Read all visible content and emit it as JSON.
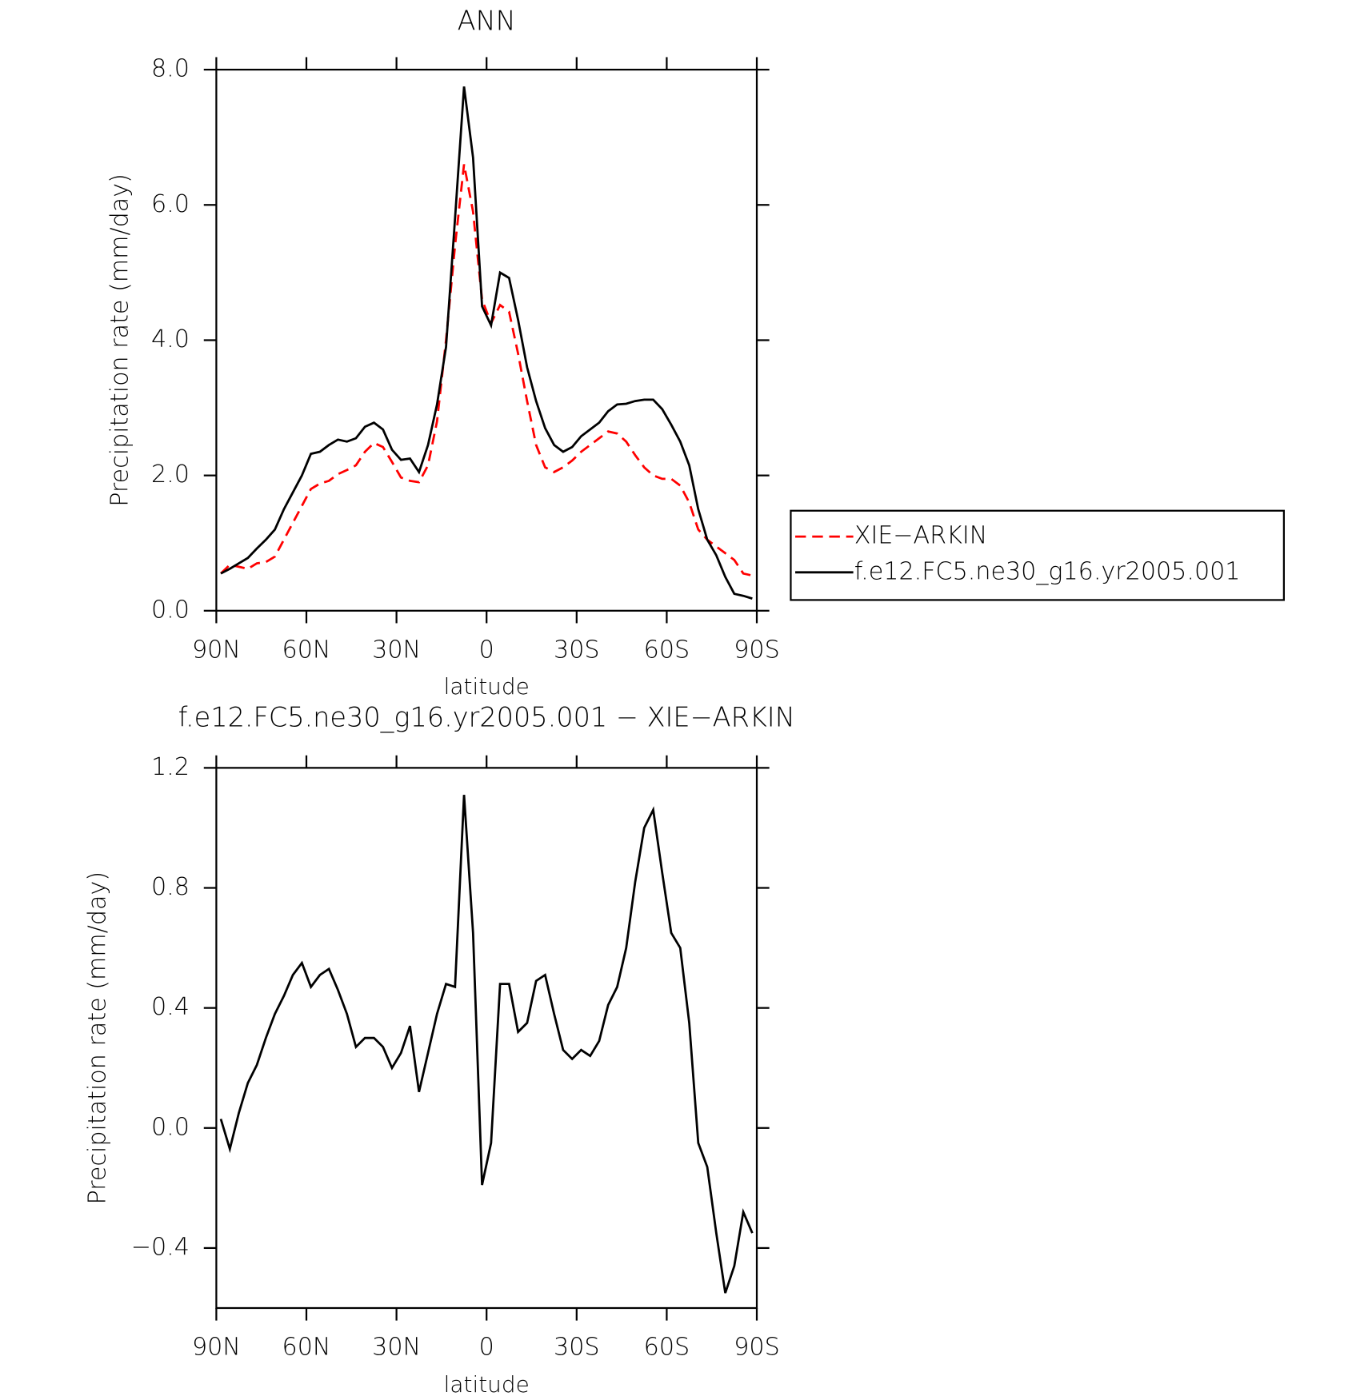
{
  "chart_data": [
    {
      "type": "line",
      "title": "ANN",
      "xlabel": "latitude",
      "ylabel": "Precipitation rate (mm/day)",
      "x": [
        88.5,
        85.5,
        82.5,
        79.5,
        76.5,
        73.5,
        70.5,
        67.5,
        64.5,
        61.5,
        58.5,
        55.5,
        52.5,
        49.5,
        46.5,
        43.5,
        40.5,
        37.5,
        34.5,
        31.5,
        28.5,
        25.5,
        22.5,
        19.5,
        16.5,
        13.5,
        10.5,
        7.5,
        4.5,
        1.5,
        -1.5,
        -4.5,
        -7.5,
        -10.5,
        -13.5,
        -16.5,
        -19.5,
        -22.5,
        -25.5,
        -28.5,
        -31.5,
        -34.5,
        -37.5,
        -40.5,
        -43.5,
        -46.5,
        -49.5,
        -52.5,
        -55.5,
        -58.5,
        -61.5,
        -64.5,
        -67.5,
        -70.5,
        -73.5,
        -76.5,
        -79.5,
        -82.5,
        -85.5,
        -88.5
      ],
      "series": [
        {
          "name": "XIE−ARKIN",
          "color": "#ff0000",
          "dashed": true,
          "values": [
            0.55,
            0.68,
            0.65,
            0.62,
            0.7,
            0.72,
            0.8,
            1.05,
            1.3,
            1.55,
            1.8,
            1.88,
            1.92,
            2.02,
            2.08,
            2.15,
            2.35,
            2.48,
            2.42,
            2.2,
            1.97,
            1.92,
            1.9,
            2.15,
            2.8,
            4.0,
            5.4,
            6.6,
            5.9,
            4.6,
            4.25,
            4.52,
            4.42,
            3.8,
            3.1,
            2.45,
            2.12,
            2.05,
            2.12,
            2.22,
            2.35,
            2.45,
            2.55,
            2.65,
            2.62,
            2.5,
            2.3,
            2.12,
            2.0,
            1.95,
            1.95,
            1.85,
            1.6,
            1.2,
            1.05,
            0.95,
            0.85,
            0.75,
            0.55,
            0.52
          ]
        },
        {
          "name": "f.e12.FC5.ne30_g16.yr2005.001",
          "color": "#000000",
          "dashed": false,
          "values": [
            0.55,
            0.62,
            0.7,
            0.78,
            0.92,
            1.05,
            1.2,
            1.5,
            1.75,
            2.0,
            2.32,
            2.35,
            2.45,
            2.53,
            2.5,
            2.55,
            2.72,
            2.78,
            2.68,
            2.38,
            2.23,
            2.25,
            2.05,
            2.45,
            3.05,
            3.9,
            5.8,
            7.75,
            6.7,
            4.5,
            4.22,
            5.0,
            4.92,
            4.3,
            3.6,
            3.1,
            2.7,
            2.45,
            2.35,
            2.42,
            2.58,
            2.68,
            2.78,
            2.95,
            3.05,
            3.06,
            3.1,
            3.12,
            3.12,
            2.98,
            2.75,
            2.5,
            2.15,
            1.5,
            1.05,
            0.82,
            0.5,
            0.25,
            0.22,
            0.18
          ]
        }
      ],
      "xlim": [
        90,
        -90
      ],
      "xticks": [
        {
          "value": 90,
          "label": "90N"
        },
        {
          "value": 60,
          "label": "60N"
        },
        {
          "value": 30,
          "label": "30N"
        },
        0,
        {
          "value": -30,
          "label": "30S"
        },
        {
          "value": -60,
          "label": "60S"
        },
        {
          "value": -90,
          "label": "90S"
        }
      ],
      "ylim": [
        0,
        8
      ],
      "yticks": [
        {
          "value": 0,
          "label": "0.0"
        },
        {
          "value": 2,
          "label": "2.0"
        },
        {
          "value": 4,
          "label": "4.0"
        },
        {
          "value": 6,
          "label": "6.0"
        },
        {
          "value": 8,
          "label": "8.0"
        }
      ],
      "legend": "outside-right"
    },
    {
      "type": "line",
      "title": "f.e12.FC5.ne30_g16.yr2005.001 − XIE−ARKIN",
      "xlabel": "latitude",
      "ylabel": "Precipitation rate (mm/day)",
      "x": [
        88.5,
        85.5,
        82.5,
        79.5,
        76.5,
        73.5,
        70.5,
        67.5,
        64.5,
        61.5,
        58.5,
        55.5,
        52.5,
        49.5,
        46.5,
        43.5,
        40.5,
        37.5,
        34.5,
        31.5,
        28.5,
        25.5,
        22.5,
        19.5,
        16.5,
        13.5,
        10.5,
        7.5,
        4.5,
        1.5,
        -1.5,
        -4.5,
        -7.5,
        -10.5,
        -13.5,
        -16.5,
        -19.5,
        -22.5,
        -25.5,
        -28.5,
        -31.5,
        -34.5,
        -37.5,
        -40.5,
        -43.5,
        -46.5,
        -49.5,
        -52.5,
        -55.5,
        -58.5,
        -61.5,
        -64.5,
        -67.5,
        -70.5,
        -73.5,
        -76.5,
        -79.5,
        -82.5,
        -85.5,
        -88.5
      ],
      "color": "#000000",
      "values": [
        0.03,
        -0.07,
        0.05,
        0.15,
        0.21,
        0.3,
        0.38,
        0.44,
        0.51,
        0.55,
        0.47,
        0.51,
        0.53,
        0.46,
        0.38,
        0.27,
        0.3,
        0.3,
        0.27,
        0.2,
        0.25,
        0.34,
        0.12,
        0.25,
        0.38,
        0.48,
        0.47,
        1.11,
        0.65,
        -0.19,
        -0.05,
        0.48,
        0.48,
        0.32,
        0.35,
        0.49,
        0.51,
        0.38,
        0.26,
        0.23,
        0.26,
        0.24,
        0.29,
        0.41,
        0.47,
        0.6,
        0.82,
        1.0,
        1.06,
        0.85,
        0.65,
        0.6,
        0.35,
        -0.05,
        -0.13,
        -0.35,
        -0.55,
        -0.46,
        -0.28,
        -0.35
      ],
      "xlim": [
        90,
        -90
      ],
      "xticks": [
        {
          "value": 90,
          "label": "90N"
        },
        {
          "value": 60,
          "label": "60N"
        },
        {
          "value": 30,
          "label": "30N"
        },
        0,
        {
          "value": -30,
          "label": "30S"
        },
        {
          "value": -60,
          "label": "60S"
        },
        {
          "value": -90,
          "label": "90S"
        }
      ],
      "ylim": [
        -0.6,
        1.2
      ],
      "yticks": [
        {
          "value": -0.4,
          "label": "−0.4"
        },
        {
          "value": 0,
          "label": "0.0"
        },
        0.4,
        0.8,
        1.2
      ]
    }
  ]
}
